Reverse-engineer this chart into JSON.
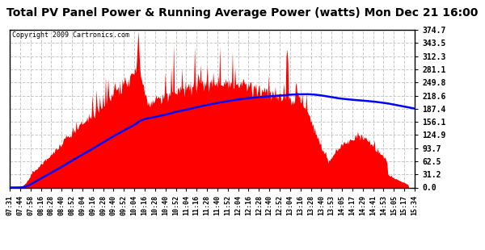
{
  "title": "Total PV Panel Power & Running Average Power (watts) Mon Dec 21 16:00",
  "copyright": "Copyright 2009 Cartronics.com",
  "yticks": [
    0.0,
    31.2,
    62.5,
    93.7,
    124.9,
    156.1,
    187.4,
    218.6,
    249.8,
    281.1,
    312.3,
    343.5,
    374.7
  ],
  "ymax": 374.7,
  "xtick_labels": [
    "07:31",
    "07:44",
    "07:58",
    "08:16",
    "08:28",
    "08:40",
    "08:52",
    "09:04",
    "09:16",
    "09:28",
    "09:40",
    "09:52",
    "10:04",
    "10:16",
    "10:28",
    "10:40",
    "10:52",
    "11:04",
    "11:16",
    "11:28",
    "11:40",
    "11:52",
    "12:04",
    "12:16",
    "12:28",
    "12:40",
    "12:52",
    "13:04",
    "13:16",
    "13:28",
    "13:40",
    "13:53",
    "14:05",
    "14:17",
    "14:29",
    "14:41",
    "14:53",
    "15:05",
    "15:17",
    "15:34"
  ],
  "bar_color": "#FF0000",
  "line_color": "#0000FF",
  "background_color": "#FFFFFF",
  "grid_color": "#C8C8C8",
  "title_fontsize": 11,
  "title_color": "#000000"
}
